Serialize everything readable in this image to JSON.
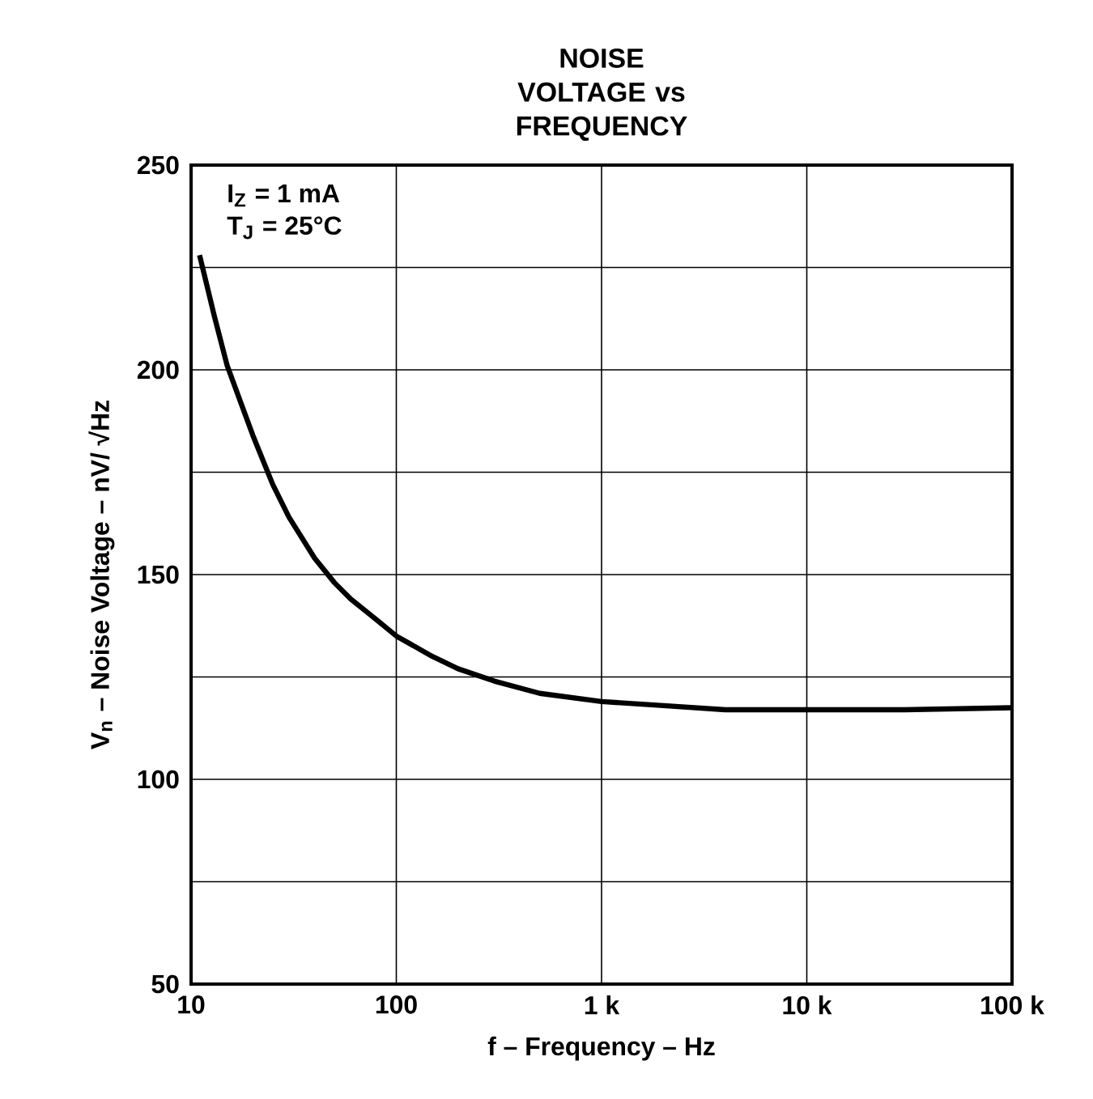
{
  "chart_data": {
    "type": "line",
    "title": "NOISE VOLTAGE vs FREQUENCY",
    "xlabel": "f – Frequency – Hz",
    "ylabel": "V$_{n}$ – Noise Voltage – nV/ √Hz",
    "annotations": [
      "I$_{Z}$ = 1 mA",
      "T$_{J}$ = 25°C"
    ],
    "x": [
      11,
      13,
      15,
      20,
      25,
      30,
      40,
      50,
      60,
      80,
      100,
      150,
      200,
      300,
      500,
      1000,
      2000,
      4000,
      10000,
      30000,
      100000
    ],
    "values": [
      228,
      213,
      201,
      184,
      172,
      164,
      154,
      148,
      144,
      139,
      135,
      130,
      127,
      124,
      121,
      119,
      118,
      117,
      117,
      117,
      117.5
    ],
    "color": "#000000",
    "log": "x",
    "grid": true,
    "xlim": [
      10,
      100000
    ],
    "ylim": [
      50,
      250
    ],
    "xticks": [
      10,
      100,
      {
        "value": 1000,
        "label": "1 k"
      },
      {
        "value": 10000,
        "label": "10 k"
      },
      {
        "value": 100000,
        "label": "100 k"
      }
    ],
    "yticks": [
      50,
      {
        "value": 75,
        "label": null
      },
      100,
      {
        "value": 125,
        "label": null
      },
      150,
      {
        "value": 175,
        "label": null
      },
      200,
      {
        "value": 225,
        "label": null
      },
      250
    ]
  }
}
